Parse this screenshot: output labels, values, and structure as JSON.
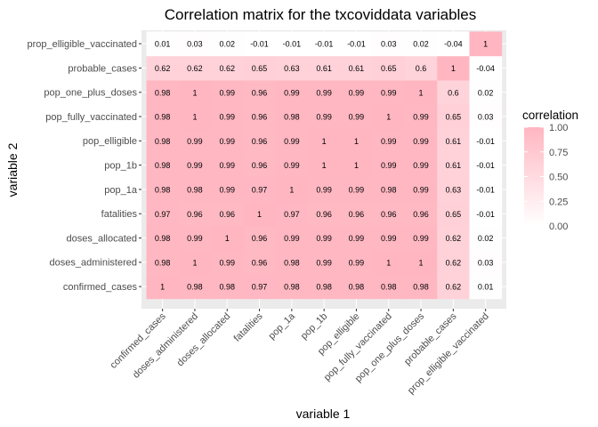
{
  "chart_data": {
    "type": "heatmap",
    "title": "Correlation matrix for the txcoviddata variables",
    "xlabel": "variable 1",
    "ylabel": "variable 2",
    "variables": [
      "confirmed_cases",
      "doses_administered",
      "doses_allocated",
      "fatalities",
      "pop_1a",
      "pop_1b",
      "pop_elligible",
      "pop_fully_vaccinated",
      "pop_one_plus_doses",
      "probable_cases",
      "prop_elligible_vaccinated"
    ],
    "matrix": [
      [
        1,
        0.98,
        0.98,
        0.97,
        0.98,
        0.98,
        0.98,
        0.98,
        0.98,
        0.62,
        0.01
      ],
      [
        0.98,
        1,
        0.99,
        0.96,
        0.98,
        0.99,
        0.99,
        1,
        1,
        0.62,
        0.03
      ],
      [
        0.98,
        0.99,
        1,
        0.96,
        0.99,
        0.99,
        0.99,
        0.99,
        0.99,
        0.62,
        0.02
      ],
      [
        0.97,
        0.96,
        0.96,
        1,
        0.97,
        0.96,
        0.96,
        0.96,
        0.96,
        0.65,
        -0.01
      ],
      [
        0.98,
        0.98,
        0.99,
        0.97,
        1,
        0.99,
        0.99,
        0.98,
        0.99,
        0.63,
        -0.01
      ],
      [
        0.98,
        0.99,
        0.99,
        0.96,
        0.99,
        1,
        1,
        0.99,
        0.99,
        0.61,
        -0.01
      ],
      [
        0.98,
        0.99,
        0.99,
        0.96,
        0.99,
        1,
        1,
        0.99,
        0.99,
        0.61,
        -0.01
      ],
      [
        0.98,
        1,
        0.99,
        0.96,
        0.98,
        0.99,
        0.99,
        1,
        0.99,
        0.65,
        0.03
      ],
      [
        0.98,
        1,
        0.99,
        0.96,
        0.99,
        0.99,
        0.99,
        0.99,
        1,
        0.6,
        0.02
      ],
      [
        0.62,
        0.62,
        0.62,
        0.65,
        0.63,
        0.61,
        0.61,
        0.65,
        0.6,
        1,
        -0.04
      ],
      [
        0.01,
        0.03,
        0.02,
        -0.01,
        -0.01,
        -0.01,
        -0.01,
        0.03,
        0.02,
        -0.04,
        1
      ]
    ],
    "legend": {
      "title": "correlation",
      "ticks": [
        "1.00",
        "0.75",
        "0.50",
        "0.25",
        "0.00"
      ],
      "placement": "right"
    },
    "colors": {
      "high": "#ffb6c1",
      "low": "#ffffff",
      "panel": "#ebebeb",
      "grid": "#ffffff"
    }
  }
}
